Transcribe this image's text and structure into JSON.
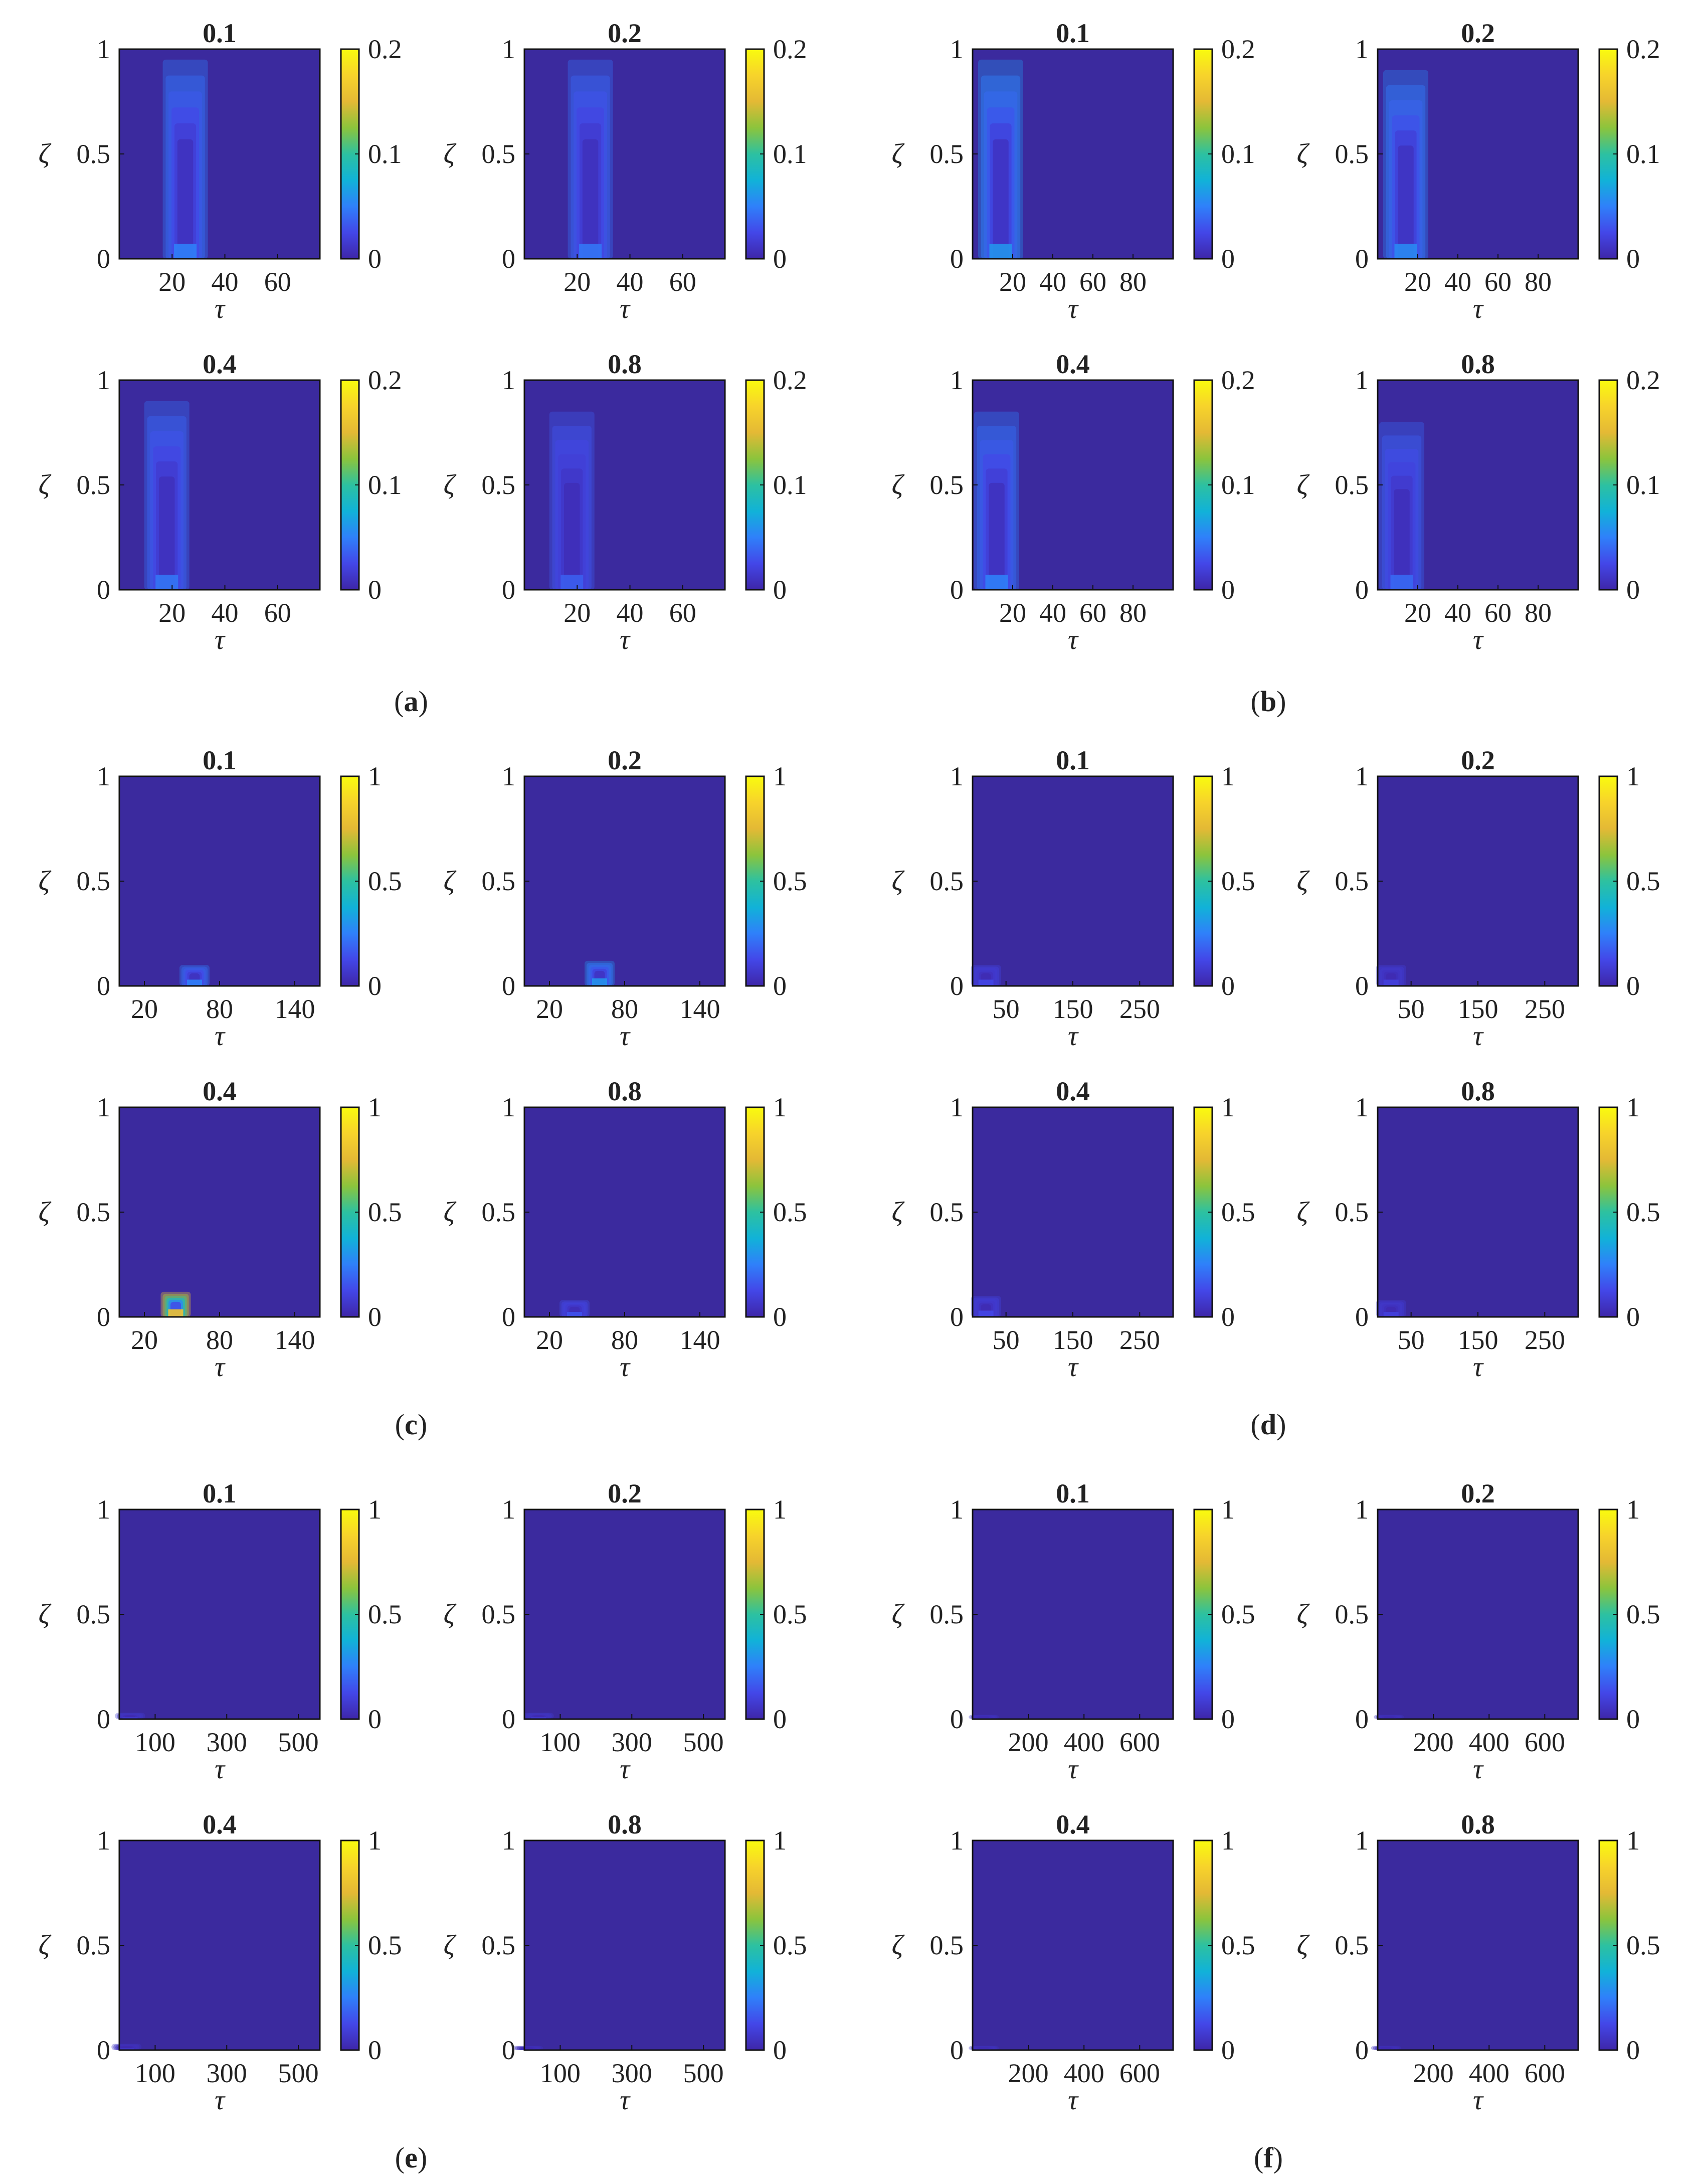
{
  "figure": {
    "panel_labels": [
      "a",
      "b",
      "c",
      "d",
      "e",
      "f"
    ],
    "colormap": [
      "#3e26a8",
      "#4347e8",
      "#2f80fa",
      "#11b2d8",
      "#2dc1a0",
      "#8cc43c",
      "#e4b935",
      "#f7d32b",
      "#f9fb0e"
    ],
    "background_color": "#3b2a9e"
  },
  "chart_data": [
    {
      "panel": "a",
      "type": "heatmap",
      "xlabel": "τ",
      "ylabel": "ζ",
      "ylim": [
        0,
        1
      ],
      "yticks": [
        "0",
        "0.5",
        "1"
      ],
      "xlim": [
        0,
        76
      ],
      "xticks": [
        20,
        40,
        60
      ],
      "clim": [
        0,
        0.2
      ],
      "cticks": [
        "0",
        "0.1",
        "0.2"
      ],
      "subplots": [
        {
          "title": "0.1",
          "hotspot": {
            "tau": 25,
            "zeta_max": 0.95,
            "peak": 0.05
          }
        },
        {
          "title": "0.2",
          "hotspot": {
            "tau": 25,
            "zeta_max": 0.95,
            "peak": 0.045
          }
        },
        {
          "title": "0.4",
          "hotspot": {
            "tau": 18,
            "zeta_max": 0.9,
            "peak": 0.045
          }
        },
        {
          "title": "0.8",
          "hotspot": {
            "tau": 18,
            "zeta_max": 0.85,
            "peak": 0.035
          }
        }
      ]
    },
    {
      "panel": "b",
      "type": "heatmap",
      "xlabel": "τ",
      "ylabel": "ζ",
      "ylim": [
        0,
        1
      ],
      "yticks": [
        "0",
        "0.5",
        "1"
      ],
      "xlim": [
        0,
        100
      ],
      "xticks": [
        20,
        40,
        60,
        80
      ],
      "clim": [
        0,
        0.2
      ],
      "cticks": [
        "0",
        "0.1",
        "0.2"
      ],
      "subplots": [
        {
          "title": "0.1",
          "hotspot": {
            "tau": 14,
            "zeta_max": 0.95,
            "peak": 0.06
          }
        },
        {
          "title": "0.2",
          "hotspot": {
            "tau": 14,
            "zeta_max": 0.9,
            "peak": 0.055
          }
        },
        {
          "title": "0.4",
          "hotspot": {
            "tau": 12,
            "zeta_max": 0.85,
            "peak": 0.05
          }
        },
        {
          "title": "0.8",
          "hotspot": {
            "tau": 12,
            "zeta_max": 0.8,
            "peak": 0.04
          }
        }
      ]
    },
    {
      "panel": "c",
      "type": "heatmap",
      "xlabel": "τ",
      "ylabel": "ζ",
      "ylim": [
        0,
        1
      ],
      "yticks": [
        "0",
        "0.5",
        "1"
      ],
      "xlim": [
        0,
        160
      ],
      "xticks": [
        20,
        80,
        140
      ],
      "clim": [
        0,
        1
      ],
      "cticks": [
        "0",
        "0.5",
        "1"
      ],
      "subplots": [
        {
          "title": "0.1",
          "hotspot": {
            "tau": 60,
            "zeta_max": 0.1,
            "peak": 0.25
          }
        },
        {
          "title": "0.2",
          "hotspot": {
            "tau": 60,
            "zeta_max": 0.12,
            "peak": 0.3
          }
        },
        {
          "title": "0.4",
          "hotspot": {
            "tau": 45,
            "zeta_max": 0.12,
            "peak": 0.8
          }
        },
        {
          "title": "0.8",
          "hotspot": {
            "tau": 40,
            "zeta_max": 0.08,
            "peak": 0.15
          }
        }
      ]
    },
    {
      "panel": "d",
      "type": "heatmap",
      "xlabel": "τ",
      "ylabel": "ζ",
      "ylim": [
        0,
        1
      ],
      "yticks": [
        "0",
        "0.5",
        "1"
      ],
      "xlim": [
        0,
        300
      ],
      "xticks": [
        50,
        150,
        250
      ],
      "clim": [
        0,
        1
      ],
      "cticks": [
        "0",
        "0.5",
        "1"
      ],
      "subplots": [
        {
          "title": "0.1",
          "hotspot": {
            "tau": 20,
            "zeta_max": 0.1,
            "peak": 0.12
          }
        },
        {
          "title": "0.2",
          "hotspot": {
            "tau": 20,
            "zeta_max": 0.1,
            "peak": 0.1
          }
        },
        {
          "title": "0.4",
          "hotspot": {
            "tau": 20,
            "zeta_max": 0.1,
            "peak": 0.12
          }
        },
        {
          "title": "0.8",
          "hotspot": {
            "tau": 20,
            "zeta_max": 0.08,
            "peak": 0.1
          }
        }
      ]
    },
    {
      "panel": "e",
      "type": "heatmap",
      "xlabel": "τ",
      "ylabel": "ζ",
      "ylim": [
        0,
        1
      ],
      "yticks": [
        "0",
        "0.5",
        "1"
      ],
      "xlim": [
        0,
        560
      ],
      "xticks": [
        100,
        300,
        500
      ],
      "clim": [
        0,
        1
      ],
      "cticks": [
        "0",
        "0.5",
        "1"
      ],
      "subplots": [
        {
          "title": "0.1",
          "hotspot": {
            "tau": 30,
            "zeta_max": 0.03,
            "peak": 0.08
          }
        },
        {
          "title": "0.2",
          "hotspot": {
            "tau": 40,
            "zeta_max": 0.03,
            "peak": 0.08
          }
        },
        {
          "title": "0.4",
          "hotspot": {
            "tau": 20,
            "zeta_max": 0.03,
            "peak": 0.06
          }
        },
        {
          "title": "0.8",
          "hotspot": {
            "tau": 10,
            "zeta_max": 0.02,
            "peak": 0.05
          }
        }
      ]
    },
    {
      "panel": "f",
      "type": "heatmap",
      "xlabel": "τ",
      "ylabel": "ζ",
      "ylim": [
        0,
        1
      ],
      "yticks": [
        "0",
        "0.5",
        "1"
      ],
      "xlim": [
        0,
        720
      ],
      "xticks": [
        200,
        400,
        600
      ],
      "clim": [
        0,
        1
      ],
      "cticks": [
        "0",
        "0.5",
        "1"
      ],
      "subplots": [
        {
          "title": "0.1",
          "hotspot": {
            "tau": 40,
            "zeta_max": 0.02,
            "peak": 0.06
          }
        },
        {
          "title": "0.2",
          "hotspot": {
            "tau": 40,
            "zeta_max": 0.02,
            "peak": 0.06
          }
        },
        {
          "title": "0.4",
          "hotspot": {
            "tau": 40,
            "zeta_max": 0.02,
            "peak": 0.06
          }
        },
        {
          "title": "0.8",
          "hotspot": {
            "tau": 30,
            "zeta_max": 0.02,
            "peak": 0.05
          }
        }
      ]
    }
  ]
}
